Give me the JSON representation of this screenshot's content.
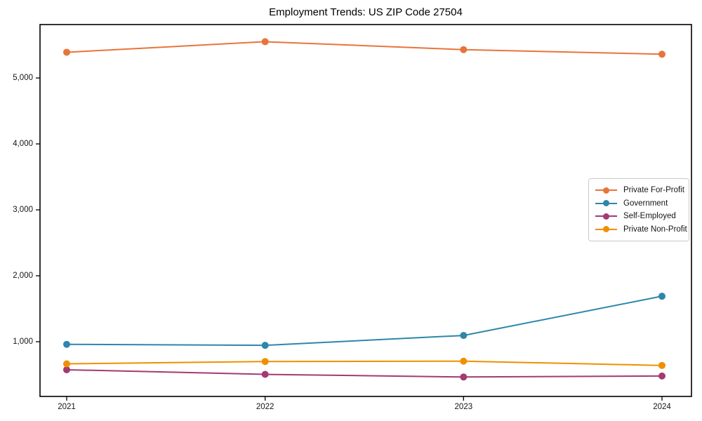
{
  "chart_data": {
    "type": "line",
    "title": "Employment Trends: US ZIP Code 27504",
    "categories": [
      "2021",
      "2022",
      "2023",
      "2024"
    ],
    "series": [
      {
        "name": "Private For-Profit",
        "color": "#E8743B",
        "values": [
          5390,
          5550,
          5430,
          5360
        ]
      },
      {
        "name": "Government",
        "color": "#2E86AB",
        "values": [
          960,
          945,
          1095,
          1690
        ]
      },
      {
        "name": "Self-Employed",
        "color": "#A23B72",
        "values": [
          575,
          505,
          465,
          480
        ]
      },
      {
        "name": "Private Non-Profit",
        "color": "#F18F01",
        "values": [
          665,
          700,
          705,
          640
        ]
      }
    ],
    "yticks": {
      "values": [
        1000,
        2000,
        3000,
        4000,
        5000
      ],
      "labels": [
        "1,000",
        "2,000",
        "3,000",
        "4,000",
        "5,000"
      ]
    },
    "ylim": [
      170,
      5810
    ],
    "xlabel": "",
    "ylabel": "",
    "grid": false,
    "legend_position": "center right",
    "axis_color": "#000000",
    "marker_radius": 5,
    "line_width": 2
  }
}
